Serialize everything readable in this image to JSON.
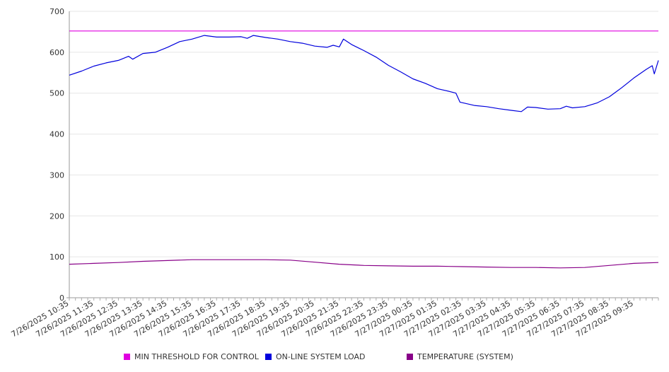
{
  "chart_data": {
    "type": "line",
    "ylim": [
      0,
      700
    ],
    "yticks": [
      0,
      100,
      200,
      300,
      400,
      500,
      600,
      700
    ],
    "x_tick_labels": [
      "7/26/2025 10:35",
      "7/26/2025 11:35",
      "7/26/2025 12:35",
      "7/26/2025 13:35",
      "7/26/2025 14:35",
      "7/26/2025 15:35",
      "7/26/2025 16:35",
      "7/26/2025 17:35",
      "7/26/2025 18:35",
      "7/26/2025 19:35",
      "7/26/2025 20:35",
      "7/26/2025 21:35",
      "7/26/2025 22:35",
      "7/26/2025 23:35",
      "7/27/2025 00:35",
      "7/27/2025 01:35",
      "7/27/2025 02:35",
      "7/27/2025 03:35",
      "7/27/2025 04:35",
      "7/27/2025 05:35",
      "7/27/2025 06:35",
      "7/27/2025 07:35",
      "7/27/2025 08:35",
      "7/27/2025 09:35"
    ],
    "x_range": [
      "7/26/2025 10:35",
      "7/27/2025 10:35"
    ],
    "grid": "horizontal",
    "legend_position": "bottom",
    "series": [
      {
        "name": "MIN THRESHOLD FOR CONTROL",
        "color": "#e000e0",
        "points": [
          [
            "7/26/2025 10:35",
            652
          ],
          [
            "7/27/2025 10:35",
            652
          ]
        ]
      },
      {
        "name": "ON-LINE SYSTEM LOAD",
        "color": "#0000dd",
        "points": [
          [
            "7/26/2025 10:35",
            544
          ],
          [
            "7/26/2025 11:05",
            554
          ],
          [
            "7/26/2025 11:35",
            566
          ],
          [
            "7/26/2025 12:05",
            574
          ],
          [
            "7/26/2025 12:35",
            580
          ],
          [
            "7/26/2025 13:00",
            590
          ],
          [
            "7/26/2025 13:10",
            583
          ],
          [
            "7/26/2025 13:35",
            597
          ],
          [
            "7/26/2025 14:05",
            600
          ],
          [
            "7/26/2025 14:35",
            612
          ],
          [
            "7/26/2025 15:05",
            626
          ],
          [
            "7/26/2025 15:35",
            632
          ],
          [
            "7/26/2025 16:05",
            641
          ],
          [
            "7/26/2025 16:35",
            637
          ],
          [
            "7/26/2025 17:05",
            637
          ],
          [
            "7/26/2025 17:35",
            638
          ],
          [
            "7/26/2025 17:50",
            634
          ],
          [
            "7/26/2025 18:05",
            641
          ],
          [
            "7/26/2025 18:35",
            636
          ],
          [
            "7/26/2025 19:05",
            632
          ],
          [
            "7/26/2025 19:35",
            626
          ],
          [
            "7/26/2025 20:05",
            622
          ],
          [
            "7/26/2025 20:35",
            615
          ],
          [
            "7/26/2025 21:05",
            612
          ],
          [
            "7/26/2025 21:20",
            617
          ],
          [
            "7/26/2025 21:35",
            613
          ],
          [
            "7/26/2025 21:45",
            632
          ],
          [
            "7/26/2025 22:05",
            619
          ],
          [
            "7/26/2025 22:35",
            604
          ],
          [
            "7/26/2025 23:05",
            588
          ],
          [
            "7/26/2025 23:35",
            568
          ],
          [
            "7/27/2025 00:05",
            552
          ],
          [
            "7/27/2025 00:35",
            535
          ],
          [
            "7/27/2025 01:05",
            524
          ],
          [
            "7/27/2025 01:35",
            511
          ],
          [
            "7/27/2025 02:05",
            504
          ],
          [
            "7/27/2025 02:20",
            500
          ],
          [
            "7/27/2025 02:30",
            478
          ],
          [
            "7/27/2025 03:05",
            470
          ],
          [
            "7/27/2025 03:35",
            467
          ],
          [
            "7/27/2025 04:05",
            462
          ],
          [
            "7/27/2025 04:35",
            458
          ],
          [
            "7/27/2025 05:00",
            455
          ],
          [
            "7/27/2025 05:15",
            466
          ],
          [
            "7/27/2025 05:35",
            465
          ],
          [
            "7/27/2025 06:05",
            461
          ],
          [
            "7/27/2025 06:35",
            462
          ],
          [
            "7/27/2025 06:50",
            468
          ],
          [
            "7/27/2025 07:05",
            464
          ],
          [
            "7/27/2025 07:35",
            467
          ],
          [
            "7/27/2025 08:05",
            476
          ],
          [
            "7/27/2025 08:35",
            491
          ],
          [
            "7/27/2025 09:05",
            513
          ],
          [
            "7/27/2025 09:35",
            537
          ],
          [
            "7/27/2025 10:05",
            558
          ],
          [
            "7/27/2025 10:20",
            567
          ],
          [
            "7/27/2025 10:25",
            547
          ],
          [
            "7/27/2025 10:35",
            580
          ]
        ]
      },
      {
        "name": "TEMPERATURE (SYSTEM)",
        "color": "#880088",
        "points": [
          [
            "7/26/2025 10:35",
            82
          ],
          [
            "7/26/2025 11:35",
            84
          ],
          [
            "7/26/2025 12:35",
            86
          ],
          [
            "7/26/2025 13:35",
            89
          ],
          [
            "7/26/2025 14:35",
            91
          ],
          [
            "7/26/2025 15:35",
            93
          ],
          [
            "7/26/2025 16:35",
            93
          ],
          [
            "7/26/2025 17:35",
            93
          ],
          [
            "7/26/2025 18:35",
            93
          ],
          [
            "7/26/2025 19:35",
            92
          ],
          [
            "7/26/2025 20:35",
            87
          ],
          [
            "7/26/2025 21:35",
            82
          ],
          [
            "7/26/2025 22:35",
            79
          ],
          [
            "7/26/2025 23:35",
            78
          ],
          [
            "7/27/2025 00:35",
            77
          ],
          [
            "7/27/2025 01:35",
            77
          ],
          [
            "7/27/2025 02:35",
            76
          ],
          [
            "7/27/2025 03:35",
            75
          ],
          [
            "7/27/2025 04:35",
            74
          ],
          [
            "7/27/2025 05:35",
            74
          ],
          [
            "7/27/2025 06:35",
            73
          ],
          [
            "7/27/2025 07:35",
            74
          ],
          [
            "7/27/2025 08:35",
            79
          ],
          [
            "7/27/2025 09:35",
            84
          ],
          [
            "7/27/2025 10:35",
            86
          ]
        ]
      }
    ]
  }
}
